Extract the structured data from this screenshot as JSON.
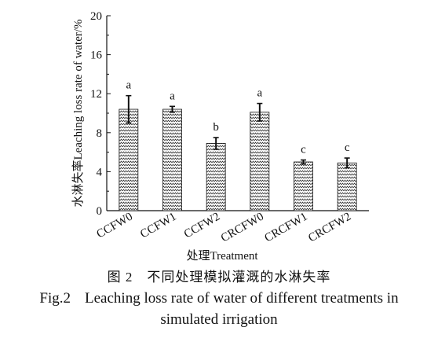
{
  "chart_data": {
    "type": "bar",
    "categories": [
      "CCFW0",
      "CCFW1",
      "CCFW2",
      "CRCFW0",
      "CRCFW1",
      "CRCFW2"
    ],
    "values": [
      10.4,
      10.4,
      6.9,
      10.1,
      5.0,
      4.9
    ],
    "errors": [
      1.4,
      0.3,
      0.6,
      0.9,
      0.2,
      0.5
    ],
    "significance_letters": [
      "a",
      "a",
      "b",
      "a",
      "c",
      "c"
    ],
    "xlabel": "处理Treatment",
    "ylabel": "水淋失率Leaching loss rate of water/%",
    "ylim": [
      0,
      20
    ],
    "yticks": [
      0,
      4,
      8,
      12,
      16,
      20
    ],
    "grid": false,
    "bar_pattern": "zigzag-hatch",
    "bar_color": "#ffffff",
    "line_color": "#111111"
  },
  "caption": {
    "cn_number": "图 2",
    "cn_text": "不同处理模拟灌溉的水淋失率",
    "en_number": "Fig.2",
    "en_text_line1": "Leaching loss rate of water of different treatments in",
    "en_text_line2": "simulated irrigation"
  }
}
